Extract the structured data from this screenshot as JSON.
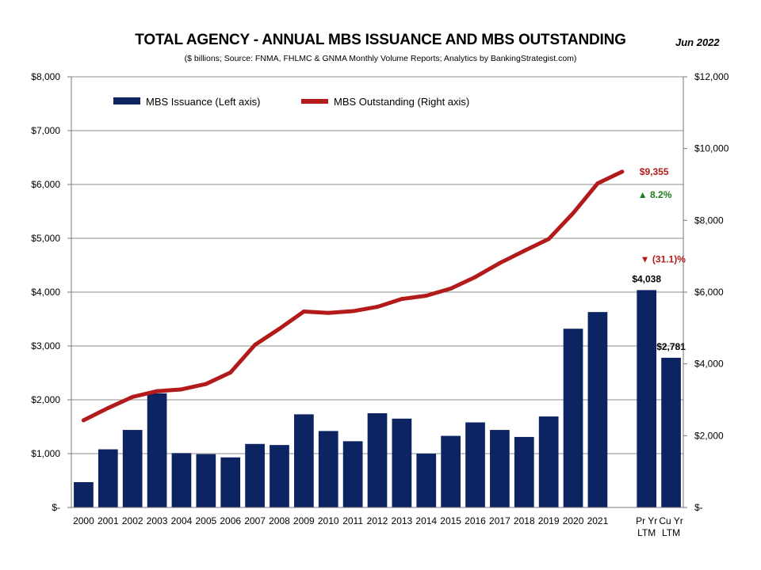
{
  "header": {
    "title": "TOTAL AGENCY - ANNUAL MBS ISSUANCE AND MBS OUTSTANDING",
    "subtitle": "($ billions;     Source: FNMA, FHLMC & GNMA Monthly Volume Reports; Analytics by BankingStrategist.com)",
    "date": "Jun  2022"
  },
  "chart_data": {
    "type": "bar",
    "categories": [
      "2000",
      "2001",
      "2002",
      "2003",
      "2004",
      "2005",
      "2006",
      "2007",
      "2008",
      "2009",
      "2010",
      "2011",
      "2012",
      "2013",
      "2014",
      "2015",
      "2016",
      "2017",
      "2018",
      "2019",
      "2020",
      "2021",
      "",
      "Pr Yr\nLTM",
      "Cu Yr\nLTM"
    ],
    "series": [
      {
        "name": "MBS Issuance (Left axis)",
        "type": "bar",
        "axis": "left",
        "color": "#0d2463",
        "values": [
          470,
          1080,
          1440,
          2120,
          1010,
          990,
          930,
          1180,
          1160,
          1730,
          1420,
          1230,
          1750,
          1650,
          1000,
          1330,
          1580,
          1440,
          1310,
          1690,
          3320,
          3630,
          null,
          4038,
          2781
        ]
      },
      {
        "name": "MBS Outstanding (Right axis)",
        "type": "line",
        "axis": "right",
        "color": "#b31b1b",
        "values": [
          2430,
          2770,
          3080,
          3240,
          3290,
          3440,
          3760,
          4530,
          4980,
          5460,
          5420,
          5470,
          5590,
          5810,
          5900,
          6100,
          6420,
          6810,
          7150,
          7480,
          8200,
          9030,
          9355,
          null,
          null
        ]
      }
    ],
    "y_left": {
      "range": [
        0,
        8000
      ],
      "ticks": [
        0,
        1000,
        2000,
        3000,
        4000,
        5000,
        6000,
        7000,
        8000
      ],
      "tick_labels": [
        "$-",
        "$1,000",
        "$2,000",
        "$3,000",
        "$4,000",
        "$5,000",
        "$6,000",
        "$7,000",
        "$8,000"
      ]
    },
    "y_right": {
      "range": [
        0,
        12000
      ],
      "ticks": [
        0,
        2000,
        4000,
        6000,
        8000,
        10000,
        12000
      ],
      "tick_labels": [
        "$-",
        "$2,000",
        "$4,000",
        "$6,000",
        "$8,000",
        "$10,000",
        "$12,000"
      ]
    },
    "grid": true,
    "legend_position": "top-left",
    "annotations": {
      "outstanding_latest": {
        "text": "$9,355",
        "color": "#b31b1b"
      },
      "outstanding_change": {
        "text": "▲ 8.2%",
        "color": "#1e7b1e"
      },
      "issuance_change": {
        "text": "▼ (31.1)%",
        "color": "#b31b1b"
      },
      "pr_yr_label": {
        "text": "$4,038",
        "color": "#000000"
      },
      "cu_yr_label": {
        "text": "$2,781",
        "color": "#000000"
      }
    }
  }
}
